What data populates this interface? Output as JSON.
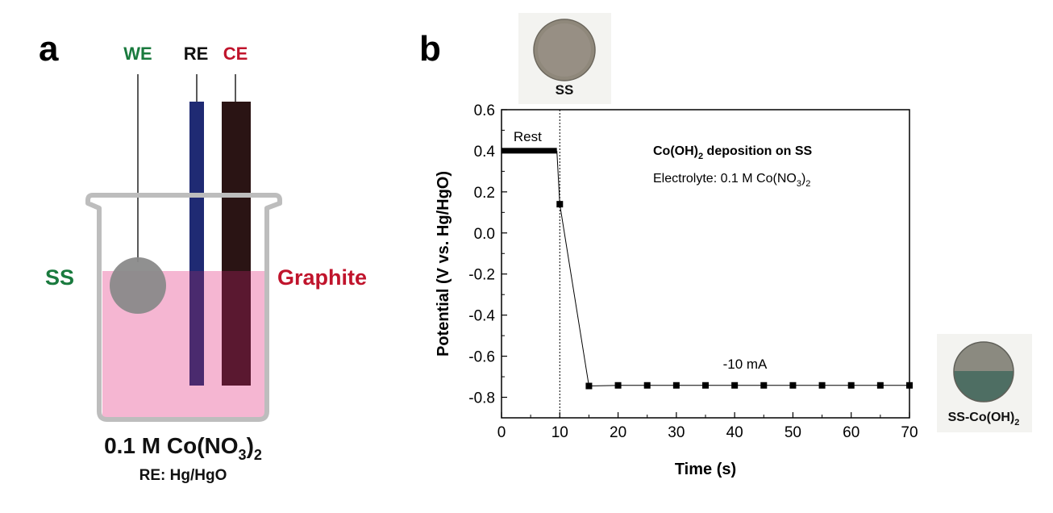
{
  "panel_a": {
    "letter": "a",
    "we_label": "WE",
    "re_label": "RE",
    "ce_label": "CE",
    "ss_label": "SS",
    "graphite_label": "Graphite",
    "electrolyte_main": "0.1 M Co(NO",
    "electrolyte_sub3": "3",
    "electrolyte_close": ")",
    "electrolyte_sub2": "2",
    "reference_label": "RE: Hg/HgO",
    "colors": {
      "we": "#1a7a3e",
      "ce": "#c0142c",
      "re_rod": "#1f2a73",
      "ce_rod": "#2a1414",
      "solution": "#f5b6d2",
      "beaker": "#bdbdbd",
      "ss_disk": "#8a8a8a"
    }
  },
  "panel_b": {
    "letter": "b",
    "photo_top_label": "SS",
    "photo_bottom_label_main": "SS-Co(OH)",
    "photo_bottom_label_sub": "2"
  },
  "chart_data": {
    "type": "line",
    "xlabel": "Time (s)",
    "ylabel": "Potential (V vs. Hg/HgO)",
    "xlim": [
      0,
      70
    ],
    "ylim": [
      -0.9,
      0.6
    ],
    "x_ticks": [
      "0",
      "10",
      "20",
      "30",
      "40",
      "50",
      "60",
      "70"
    ],
    "y_ticks": [
      "0.6",
      "0.4",
      "0.2",
      "0.0",
      "-0.2",
      "-0.4",
      "-0.6",
      "-0.8"
    ],
    "grid": false,
    "series": [
      {
        "x": [
          10,
          15,
          20,
          25,
          30,
          35,
          40,
          45,
          50,
          55,
          60,
          65,
          70
        ],
        "y": [
          0.14,
          -0.745,
          -0.742,
          -0.742,
          -0.742,
          -0.742,
          -0.742,
          -0.742,
          -0.742,
          -0.742,
          -0.742,
          -0.742,
          -0.742
        ]
      }
    ],
    "rest_segment": {
      "x": [
        0,
        9.5
      ],
      "y": 0.4,
      "label": "Rest"
    },
    "vline_x": 10,
    "annotation_title_main": "Co(OH)",
    "annotation_title_sub": "2",
    "annotation_title_rest": " deposition on SS",
    "annotation_electrolyte_main": "Electrolyte: 0.1 M Co(NO",
    "annotation_electrolyte_sub1": "3",
    "annotation_electrolyte_close": ")",
    "annotation_electrolyte_sub2": "2",
    "current_label": "-10 mA"
  }
}
